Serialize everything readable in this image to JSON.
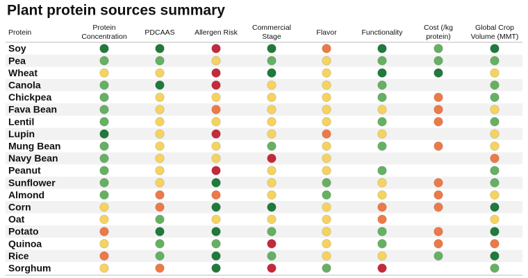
{
  "title": "Plant protein sources summary",
  "table": {
    "row_header": "Protein",
    "columns": [
      [
        "Protein",
        "Concentration"
      ],
      [
        "PDCAAS"
      ],
      [
        "Allergen Risk"
      ],
      [
        "Commercial",
        "Stage"
      ],
      [
        "Flavor"
      ],
      [
        "Functionality"
      ],
      [
        "Cost (/kg",
        "protein)"
      ],
      [
        "Global Crop",
        "Volume (MMT)"
      ]
    ],
    "rows": [
      {
        "name": "Soy",
        "cells": [
          "#1f7a3c",
          "#1f7a3c",
          "#c42a3c",
          "#1f7a3c",
          "#ec7a48",
          "#1f7a3c",
          "#66b063",
          "#1f7a3c"
        ]
      },
      {
        "name": "Pea",
        "cells": [
          "#66b063",
          "#66b063",
          "#f5d361",
          "#66b063",
          "#f5d361",
          "#66b063",
          "#66b063",
          "#66b063"
        ]
      },
      {
        "name": "Wheat",
        "cells": [
          "#f5d361",
          "#f5d361",
          "#c42a3c",
          "#1f7a3c",
          "#f5d361",
          "#1f7a3c",
          "#1f7a3c",
          "#f5d361"
        ]
      },
      {
        "name": "Canola",
        "cells": [
          "#66b063",
          "#1f7a3c",
          "#c42a3c",
          "#f5d361",
          "#f5d361",
          "#66b063",
          null,
          "#66b063"
        ]
      },
      {
        "name": "Chickpea",
        "cells": [
          "#66b063",
          "#f5d361",
          "#f5d361",
          "#f5d361",
          "#f5d361",
          "#66b063",
          "#ec7a48",
          "#66b063"
        ]
      },
      {
        "name": "Fava Bean",
        "cells": [
          "#66b063",
          "#f5d361",
          "#ec7a48",
          "#f5d361",
          "#f5d361",
          "#f5d361",
          "#ec7a48",
          "#f5d361"
        ]
      },
      {
        "name": "Lentil",
        "cells": [
          "#66b063",
          "#f5d361",
          "#f5d361",
          "#f5d361",
          "#f5d361",
          "#66b063",
          "#ec7a48",
          "#66b063"
        ]
      },
      {
        "name": "Lupin",
        "cells": [
          "#1f7a3c",
          "#f5d361",
          "#c42a3c",
          "#f5d361",
          "#ec7a48",
          "#f5d361",
          null,
          "#f5d361"
        ]
      },
      {
        "name": "Mung Bean",
        "cells": [
          "#66b063",
          "#f5d361",
          "#f5d361",
          "#66b063",
          "#f5d361",
          "#66b063",
          "#ec7a48",
          "#f5d361"
        ]
      },
      {
        "name": "Navy Bean",
        "cells": [
          "#66b063",
          "#f5d361",
          "#f5d361",
          "#c42a3c",
          "#f5d361",
          null,
          null,
          "#ec7a48"
        ]
      },
      {
        "name": "Peanut",
        "cells": [
          "#66b063",
          "#f5d361",
          "#c42a3c",
          "#f5d361",
          "#f5d361",
          "#66b063",
          null,
          "#66b063"
        ]
      },
      {
        "name": "Sunflower",
        "cells": [
          "#66b063",
          "#f5d361",
          "#1f7a3c",
          "#f5d361",
          "#66b063",
          "#f5d361",
          "#ec7a48",
          "#66b063"
        ]
      },
      {
        "name": "Almond",
        "cells": [
          "#66b063",
          "#ec7a48",
          "#ec7a48",
          "#f5d361",
          "#66b063",
          "#f5d361",
          "#ec7a48",
          "#f5d361"
        ]
      },
      {
        "name": "Corn",
        "cells": [
          "#f5d361",
          "#ec7a48",
          "#1f7a3c",
          "#1f7a3c",
          "#f5d361",
          "#ec7a48",
          "#ec7a48",
          "#1f7a3c"
        ]
      },
      {
        "name": "Oat",
        "cells": [
          "#f5d361",
          "#66b063",
          "#f5d361",
          "#f5d361",
          "#f5d361",
          "#ec7a48",
          null,
          "#f5d361"
        ]
      },
      {
        "name": "Potato",
        "cells": [
          "#ec7a48",
          "#1f7a3c",
          "#1f7a3c",
          "#66b063",
          "#f5d361",
          "#66b063",
          "#ec7a48",
          "#1f7a3c"
        ]
      },
      {
        "name": "Quinoa",
        "cells": [
          "#f5d361",
          "#66b063",
          "#66b063",
          "#c42a3c",
          "#f5d361",
          "#66b063",
          "#ec7a48",
          "#ec7a48"
        ]
      },
      {
        "name": "Rice",
        "cells": [
          "#ec7a48",
          "#66b063",
          "#1f7a3c",
          "#66b063",
          "#f5d361",
          "#f5d361",
          "#66b063",
          "#1f7a3c"
        ]
      },
      {
        "name": "Sorghum",
        "cells": [
          "#f5d361",
          "#ec7a48",
          "#1f7a3c",
          "#c42a3c",
          "#66b063",
          "#c42a3c",
          null,
          "#66b063"
        ]
      }
    ]
  }
}
